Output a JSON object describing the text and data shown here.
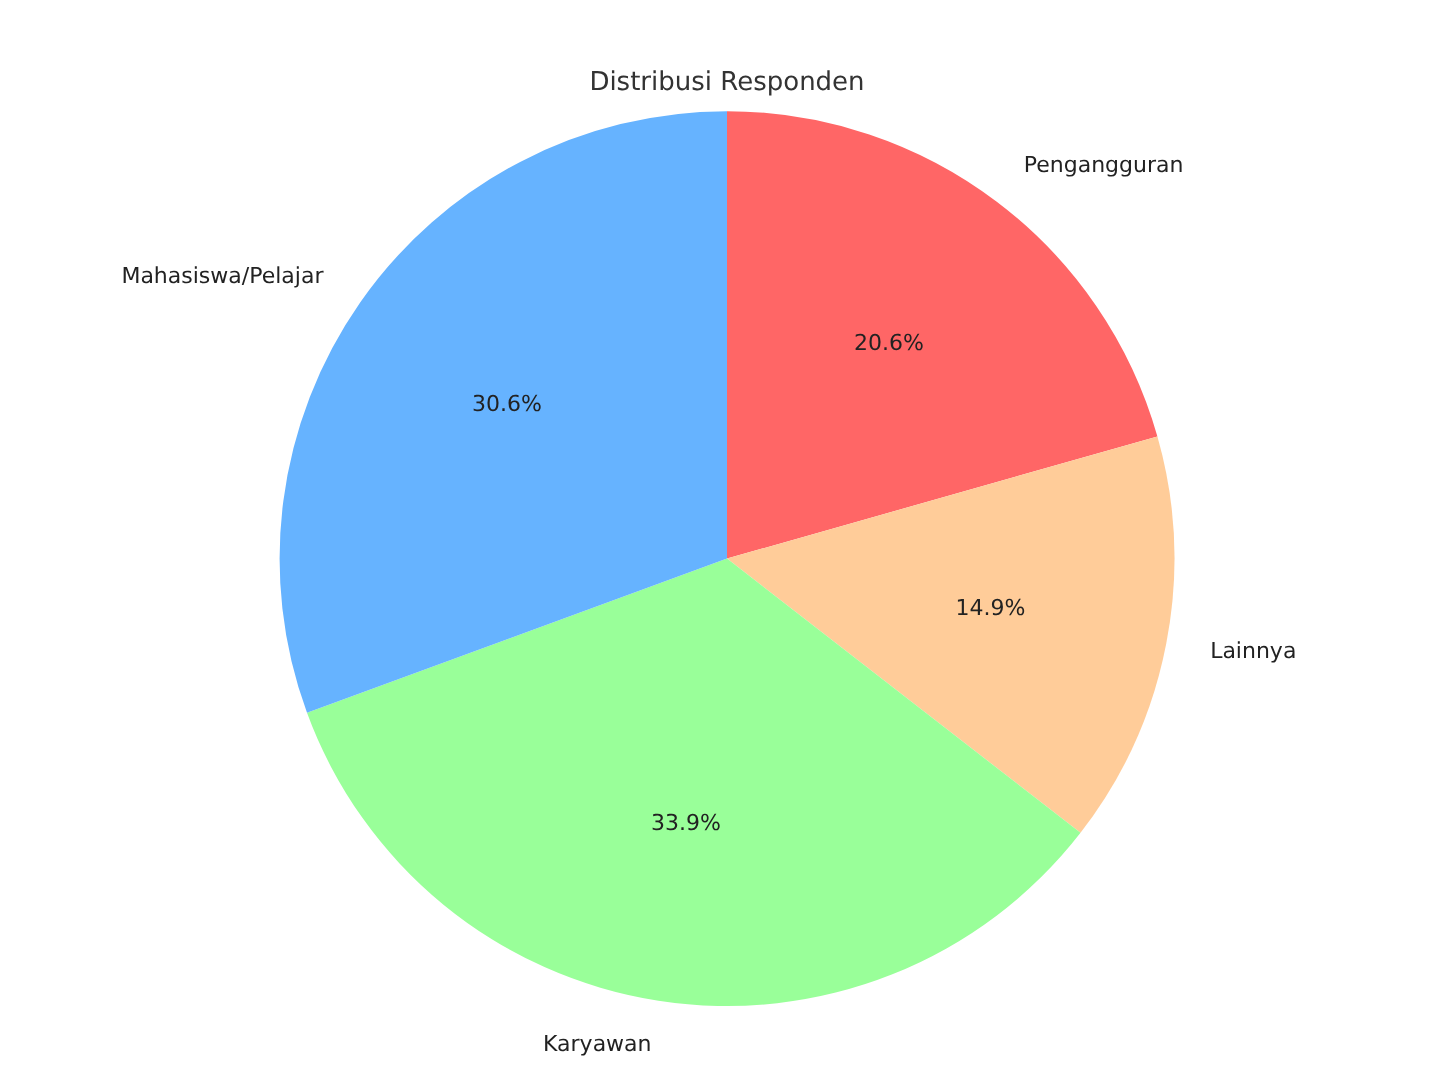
{
  "chart_data": {
    "type": "pie",
    "title": "Distribusi Responden",
    "categories": [
      "Pengangguran",
      "Lainnya",
      "Karyawan",
      "Mahasiswa/Pelajar"
    ],
    "values": [
      20.6,
      14.9,
      33.9,
      30.6
    ],
    "colors": [
      "#ff6666",
      "#ffcc99",
      "#99ff99",
      "#66b3ff"
    ],
    "value_labels": [
      "20.6%",
      "14.9%",
      "33.9%",
      "30.6%"
    ],
    "legend": false
  }
}
